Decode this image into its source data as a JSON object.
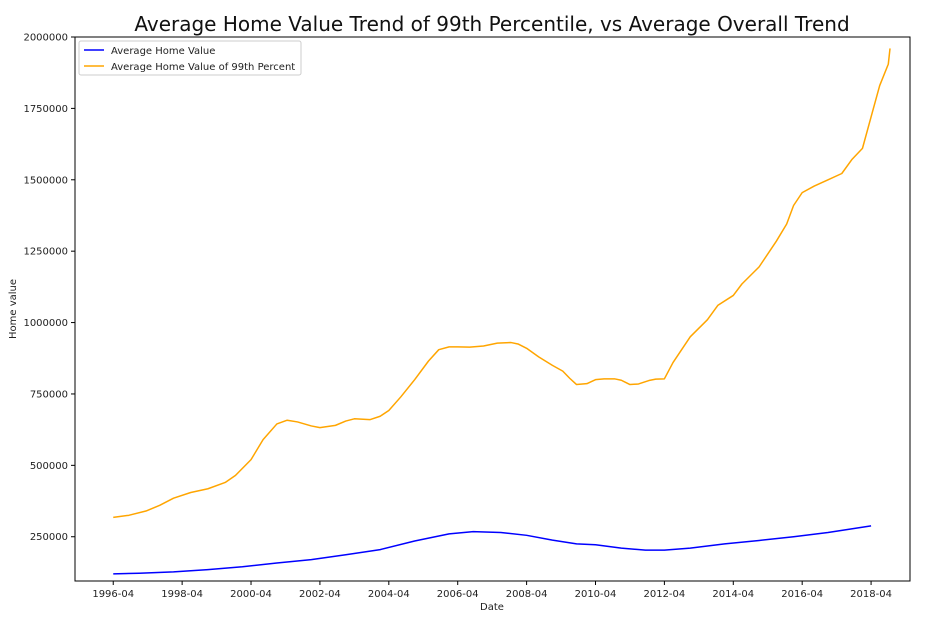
{
  "chart_data": {
    "type": "line",
    "title": "Average Home Value Trend of 99th Percentile, vs Average Overall Trend",
    "xlabel": "Date",
    "ylabel": "Home value",
    "x_start_year": 1996.25,
    "x_end_year": 2018.25,
    "xlim": [
      1995.14,
      2019.38
    ],
    "ylim": [
      95000,
      2000000
    ],
    "x_ticks": [
      {
        "label": "1996-04",
        "year": 1996.25
      },
      {
        "label": "1998-04",
        "year": 1998.25
      },
      {
        "label": "2000-04",
        "year": 2000.25
      },
      {
        "label": "2002-04",
        "year": 2002.25
      },
      {
        "label": "2004-04",
        "year": 2004.25
      },
      {
        "label": "2006-04",
        "year": 2006.25
      },
      {
        "label": "2008-04",
        "year": 2008.25
      },
      {
        "label": "2010-04",
        "year": 2010.25
      },
      {
        "label": "2012-04",
        "year": 2012.25
      },
      {
        "label": "2014-04",
        "year": 2014.25
      },
      {
        "label": "2016-04",
        "year": 2016.25
      },
      {
        "label": "2018-04",
        "year": 2018.25
      }
    ],
    "y_ticks": [
      250000,
      500000,
      750000,
      1000000,
      1250000,
      1500000,
      1750000,
      2000000
    ],
    "legend_position": "top-left",
    "grid": false,
    "series": [
      {
        "name": "Average Home Value",
        "color": "#0000ff",
        "points": [
          [
            1996.25,
            120000
          ],
          [
            1997.0,
            122000
          ],
          [
            1998.0,
            127000
          ],
          [
            1999.0,
            135000
          ],
          [
            2000.0,
            145000
          ],
          [
            2001.0,
            158000
          ],
          [
            2002.0,
            170000
          ],
          [
            2003.0,
            187000
          ],
          [
            2004.0,
            205000
          ],
          [
            2005.0,
            235000
          ],
          [
            2006.0,
            260000
          ],
          [
            2006.7,
            268000
          ],
          [
            2007.5,
            265000
          ],
          [
            2008.25,
            255000
          ],
          [
            2009.0,
            238000
          ],
          [
            2009.7,
            225000
          ],
          [
            2010.25,
            222000
          ],
          [
            2011.0,
            210000
          ],
          [
            2011.7,
            203000
          ],
          [
            2012.25,
            203000
          ],
          [
            2013.0,
            210000
          ],
          [
            2014.0,
            225000
          ],
          [
            2015.0,
            237000
          ],
          [
            2016.0,
            250000
          ],
          [
            2017.0,
            265000
          ],
          [
            2018.25,
            288000
          ]
        ]
      },
      {
        "name": "Average Home Value of 99th Percent",
        "color": "#ffa500",
        "points": [
          [
            1996.25,
            318000
          ],
          [
            1996.7,
            325000
          ],
          [
            1997.2,
            340000
          ],
          [
            1997.6,
            360000
          ],
          [
            1998.0,
            385000
          ],
          [
            1998.5,
            405000
          ],
          [
            1999.0,
            418000
          ],
          [
            1999.5,
            440000
          ],
          [
            1999.8,
            465000
          ],
          [
            2000.25,
            520000
          ],
          [
            2000.6,
            590000
          ],
          [
            2001.0,
            645000
          ],
          [
            2001.3,
            658000
          ],
          [
            2001.6,
            652000
          ],
          [
            2002.0,
            638000
          ],
          [
            2002.25,
            632000
          ],
          [
            2002.7,
            640000
          ],
          [
            2003.0,
            655000
          ],
          [
            2003.25,
            663000
          ],
          [
            2003.7,
            660000
          ],
          [
            2004.0,
            672000
          ],
          [
            2004.25,
            692000
          ],
          [
            2004.6,
            740000
          ],
          [
            2005.0,
            800000
          ],
          [
            2005.4,
            865000
          ],
          [
            2005.7,
            905000
          ],
          [
            2006.0,
            915000
          ],
          [
            2006.25,
            915000
          ],
          [
            2006.6,
            914000
          ],
          [
            2007.0,
            918000
          ],
          [
            2007.4,
            928000
          ],
          [
            2007.8,
            930000
          ],
          [
            2008.0,
            925000
          ],
          [
            2008.25,
            910000
          ],
          [
            2008.6,
            880000
          ],
          [
            2009.0,
            850000
          ],
          [
            2009.3,
            830000
          ],
          [
            2009.5,
            805000
          ],
          [
            2009.7,
            783000
          ],
          [
            2010.0,
            786000
          ],
          [
            2010.25,
            800000
          ],
          [
            2010.5,
            803000
          ],
          [
            2010.8,
            803000
          ],
          [
            2011.0,
            798000
          ],
          [
            2011.25,
            783000
          ],
          [
            2011.5,
            785000
          ],
          [
            2011.8,
            797000
          ],
          [
            2012.0,
            802000
          ],
          [
            2012.25,
            803000
          ],
          [
            2012.5,
            860000
          ],
          [
            2013.0,
            950000
          ],
          [
            2013.5,
            1010000
          ],
          [
            2013.8,
            1060000
          ],
          [
            2014.25,
            1095000
          ],
          [
            2014.5,
            1135000
          ],
          [
            2015.0,
            1195000
          ],
          [
            2015.5,
            1285000
          ],
          [
            2015.8,
            1345000
          ],
          [
            2016.0,
            1410000
          ],
          [
            2016.25,
            1455000
          ],
          [
            2016.6,
            1478000
          ],
          [
            2017.0,
            1500000
          ],
          [
            2017.4,
            1522000
          ],
          [
            2017.7,
            1572000
          ],
          [
            2018.0,
            1610000
          ],
          [
            2018.25,
            1720000
          ],
          [
            2018.5,
            1830000
          ],
          [
            2018.75,
            1905000
          ],
          [
            2018.8,
            1960000
          ]
        ]
      }
    ]
  }
}
